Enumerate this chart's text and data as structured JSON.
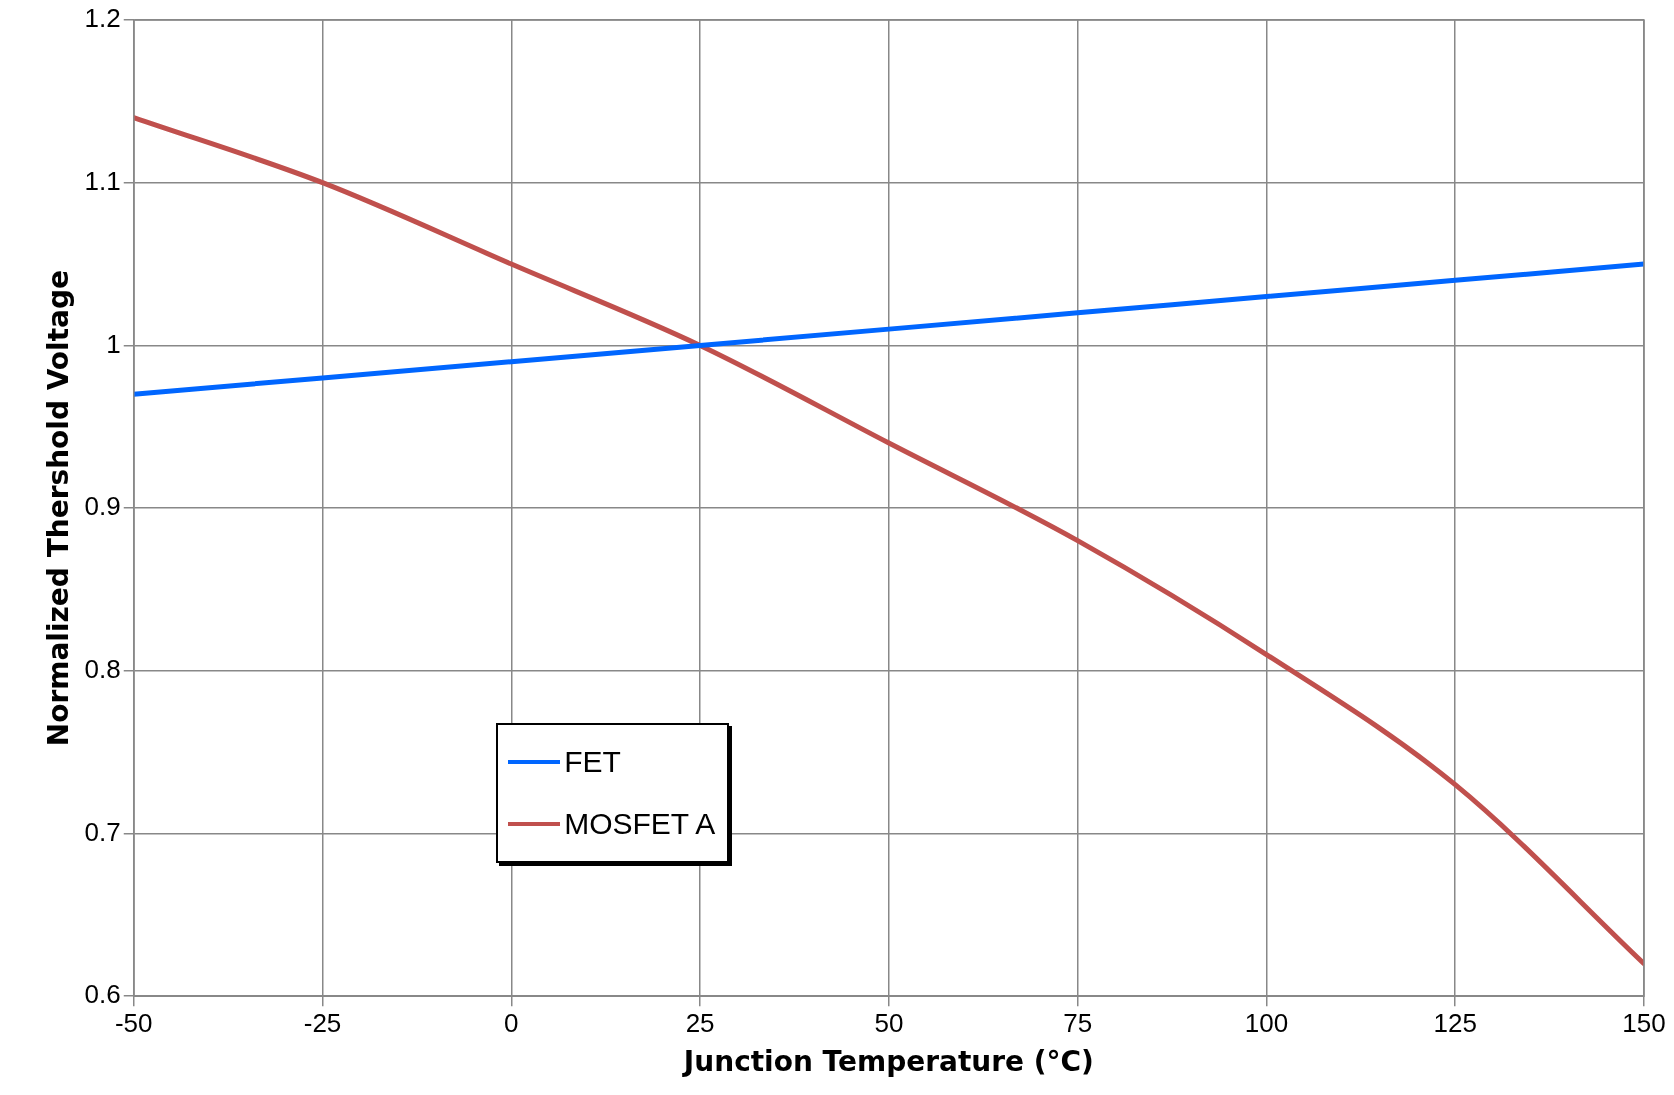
{
  "chart_data": {
    "type": "line",
    "xlabel": "Junction Temperature (°C)",
    "ylabel": "Normalized Thershold Voltage",
    "x": [
      -50,
      -25,
      0,
      25,
      50,
      75,
      100,
      125,
      150
    ],
    "series": [
      {
        "name": "FET",
        "color": "#0066ff",
        "values": [
          0.97,
          0.98,
          0.99,
          1.0,
          1.01,
          1.02,
          1.03,
          1.04,
          1.05
        ]
      },
      {
        "name": "MOSFET A",
        "color": "#c0504d",
        "values": [
          1.14,
          1.1,
          1.05,
          1.0,
          0.94,
          0.88,
          0.81,
          0.73,
          0.62
        ]
      }
    ],
    "xlim": [
      -50,
      150
    ],
    "xticks": [
      -50,
      -25,
      0,
      25,
      50,
      75,
      100,
      125,
      150
    ],
    "ylim": [
      0.6,
      1.2
    ],
    "yticks": [
      0.6,
      0.7,
      0.8,
      0.9,
      1,
      1.1,
      1.2
    ],
    "grid": true,
    "legend": "bottom left",
    "marker": "none",
    "line_style": "solid"
  }
}
